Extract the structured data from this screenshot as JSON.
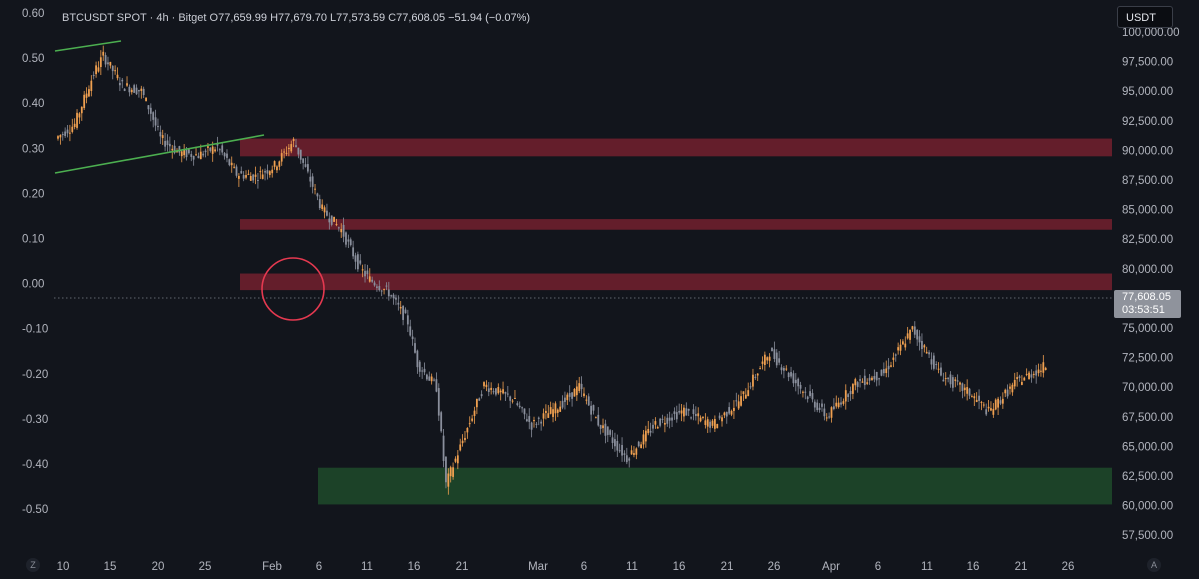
{
  "header": {
    "symbol": "BTCUSDT SPOT · 4h · Bitget",
    "o_label": "O",
    "o_value": "77,659.99",
    "h_label": "H",
    "h_value": "77,679.70",
    "l_label": "L",
    "l_value": "77,573.59",
    "c_label": "C",
    "c_value": "77,608.05",
    "change": "−51.94 (−0.07%)"
  },
  "unit_button": "USDT",
  "last_price": {
    "value": "77,608.05",
    "countdown": "03:53:51"
  },
  "corner_buttons": {
    "left": "Z",
    "right": "A"
  },
  "colors": {
    "background": "#12151c",
    "candle_up": "#f0a050",
    "candle_down": "#8a8f9c",
    "resistance_zone": "#6e1f2e",
    "support_zone": "#1f4a2a",
    "trendline": "#4caf50",
    "circle": "#e53950"
  },
  "chart_data": {
    "type": "candlestick",
    "title": "",
    "xlabel": "",
    "ylabel": "",
    "x_ticks": [
      "10",
      "15",
      "20",
      "25",
      "Feb",
      "6",
      "11",
      "16",
      "21",
      "Mar",
      "6",
      "11",
      "16",
      "21",
      "26",
      "Apr",
      "6",
      "11",
      "16",
      "21",
      "26"
    ],
    "left_ticks": [
      "0.60",
      "0.50",
      "0.40",
      "0.30",
      "0.20",
      "0.10",
      "0.00",
      "-0.10",
      "-0.20",
      "-0.30",
      "-0.40",
      "-0.50"
    ],
    "right_ticks": [
      "100,000.00",
      "97,500.00",
      "95,000.00",
      "92,500.00",
      "90,000.00",
      "87,500.00",
      "85,000.00",
      "82,500.00",
      "80,000.00",
      "75,000.00",
      "72,500.00",
      "70,000.00",
      "67,500.00",
      "65,000.00",
      "62,500.00",
      "60,000.00",
      "57,500.00"
    ],
    "ylim": [
      56500,
      101000
    ],
    "grid": false,
    "series": [
      {
        "x": [
          0,
          2,
          4,
          5,
          7,
          9,
          10,
          11,
          13,
          15,
          17,
          19,
          21,
          23,
          25,
          27,
          28,
          30,
          32,
          33,
          35,
          37,
          38,
          40,
          41,
          43,
          45,
          48,
          50,
          53,
          55,
          57,
          60,
          63,
          66,
          69,
          72,
          75,
          78,
          81,
          84,
          87,
          90,
          93,
          96,
          98,
          101,
          104
        ],
        "y": [
          91000,
          92200,
          96500,
          98000,
          95500,
          95000,
          93200,
          91000,
          89800,
          89600,
          90300,
          88000,
          87800,
          88700,
          90800,
          87000,
          85000,
          83300,
          80000,
          79100,
          78000,
          75500,
          72000,
          70000,
          61800,
          66000,
          70200,
          69000,
          66800,
          68500,
          70000,
          67000,
          64000,
          66900,
          68000,
          66800,
          69000,
          73000,
          70200,
          67500,
          70300,
          71200,
          74900,
          71000,
          69500,
          67900,
          70500,
          71800
        ]
      }
    ],
    "zones": [
      {
        "kind": "resistance",
        "from": 89500,
        "to": 91000
      },
      {
        "kind": "resistance",
        "from": 83300,
        "to": 84200
      },
      {
        "kind": "resistance",
        "from": 78200,
        "to": 79600
      },
      {
        "kind": "support",
        "from": 60100,
        "to": 63200
      }
    ]
  }
}
